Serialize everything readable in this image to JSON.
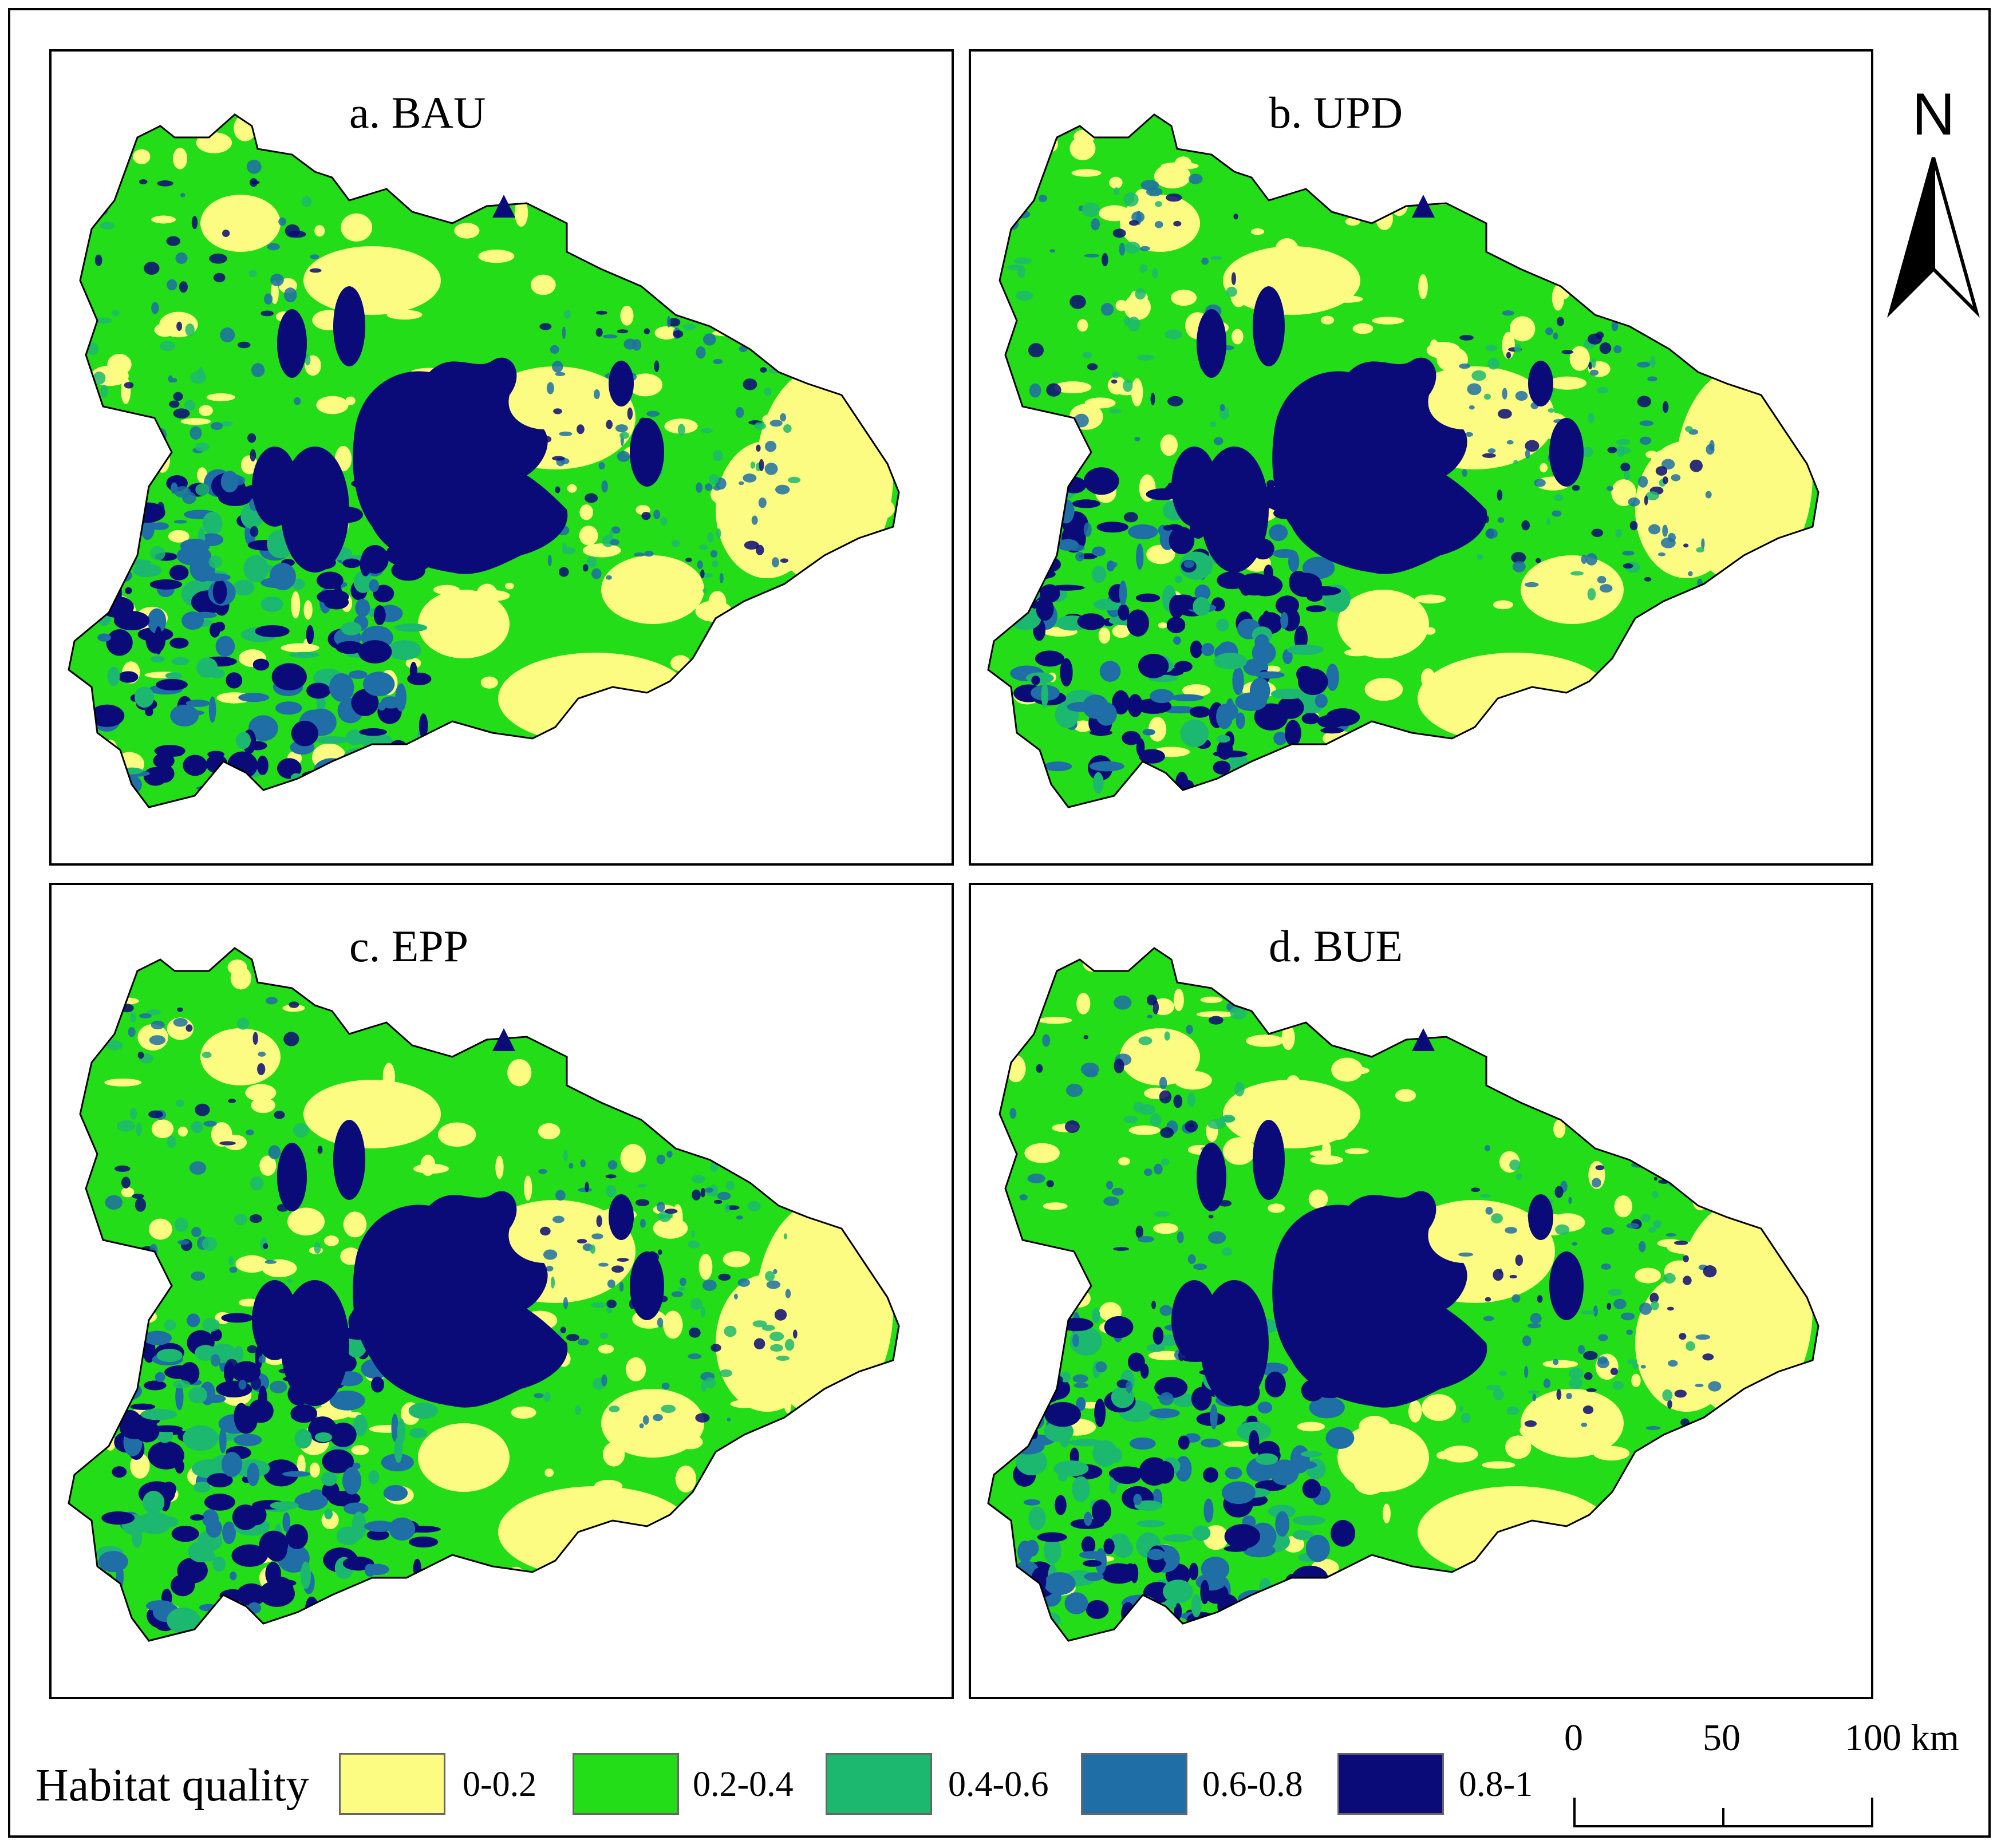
{
  "panels": [
    {
      "title": "a. BAU"
    },
    {
      "title": "b. UPD"
    },
    {
      "title": "c. EPP"
    },
    {
      "title": "d. BUE"
    }
  ],
  "north_arrow": {
    "label": "N"
  },
  "legend": {
    "title": "Habitat quality",
    "classes": [
      {
        "label": "0-0.2",
        "color": "#fcfc82"
      },
      {
        "label": "0.2-0.4",
        "color": "#22dd18"
      },
      {
        "label": "0.4-0.6",
        "color": "#1db870"
      },
      {
        "label": "0.6-0.8",
        "color": "#1f6fa6"
      },
      {
        "label": "0.8-1",
        "color": "#0a0a78"
      }
    ]
  },
  "scale_bar": {
    "labels": [
      "0",
      "50",
      "100 km"
    ],
    "unit": "km"
  }
}
